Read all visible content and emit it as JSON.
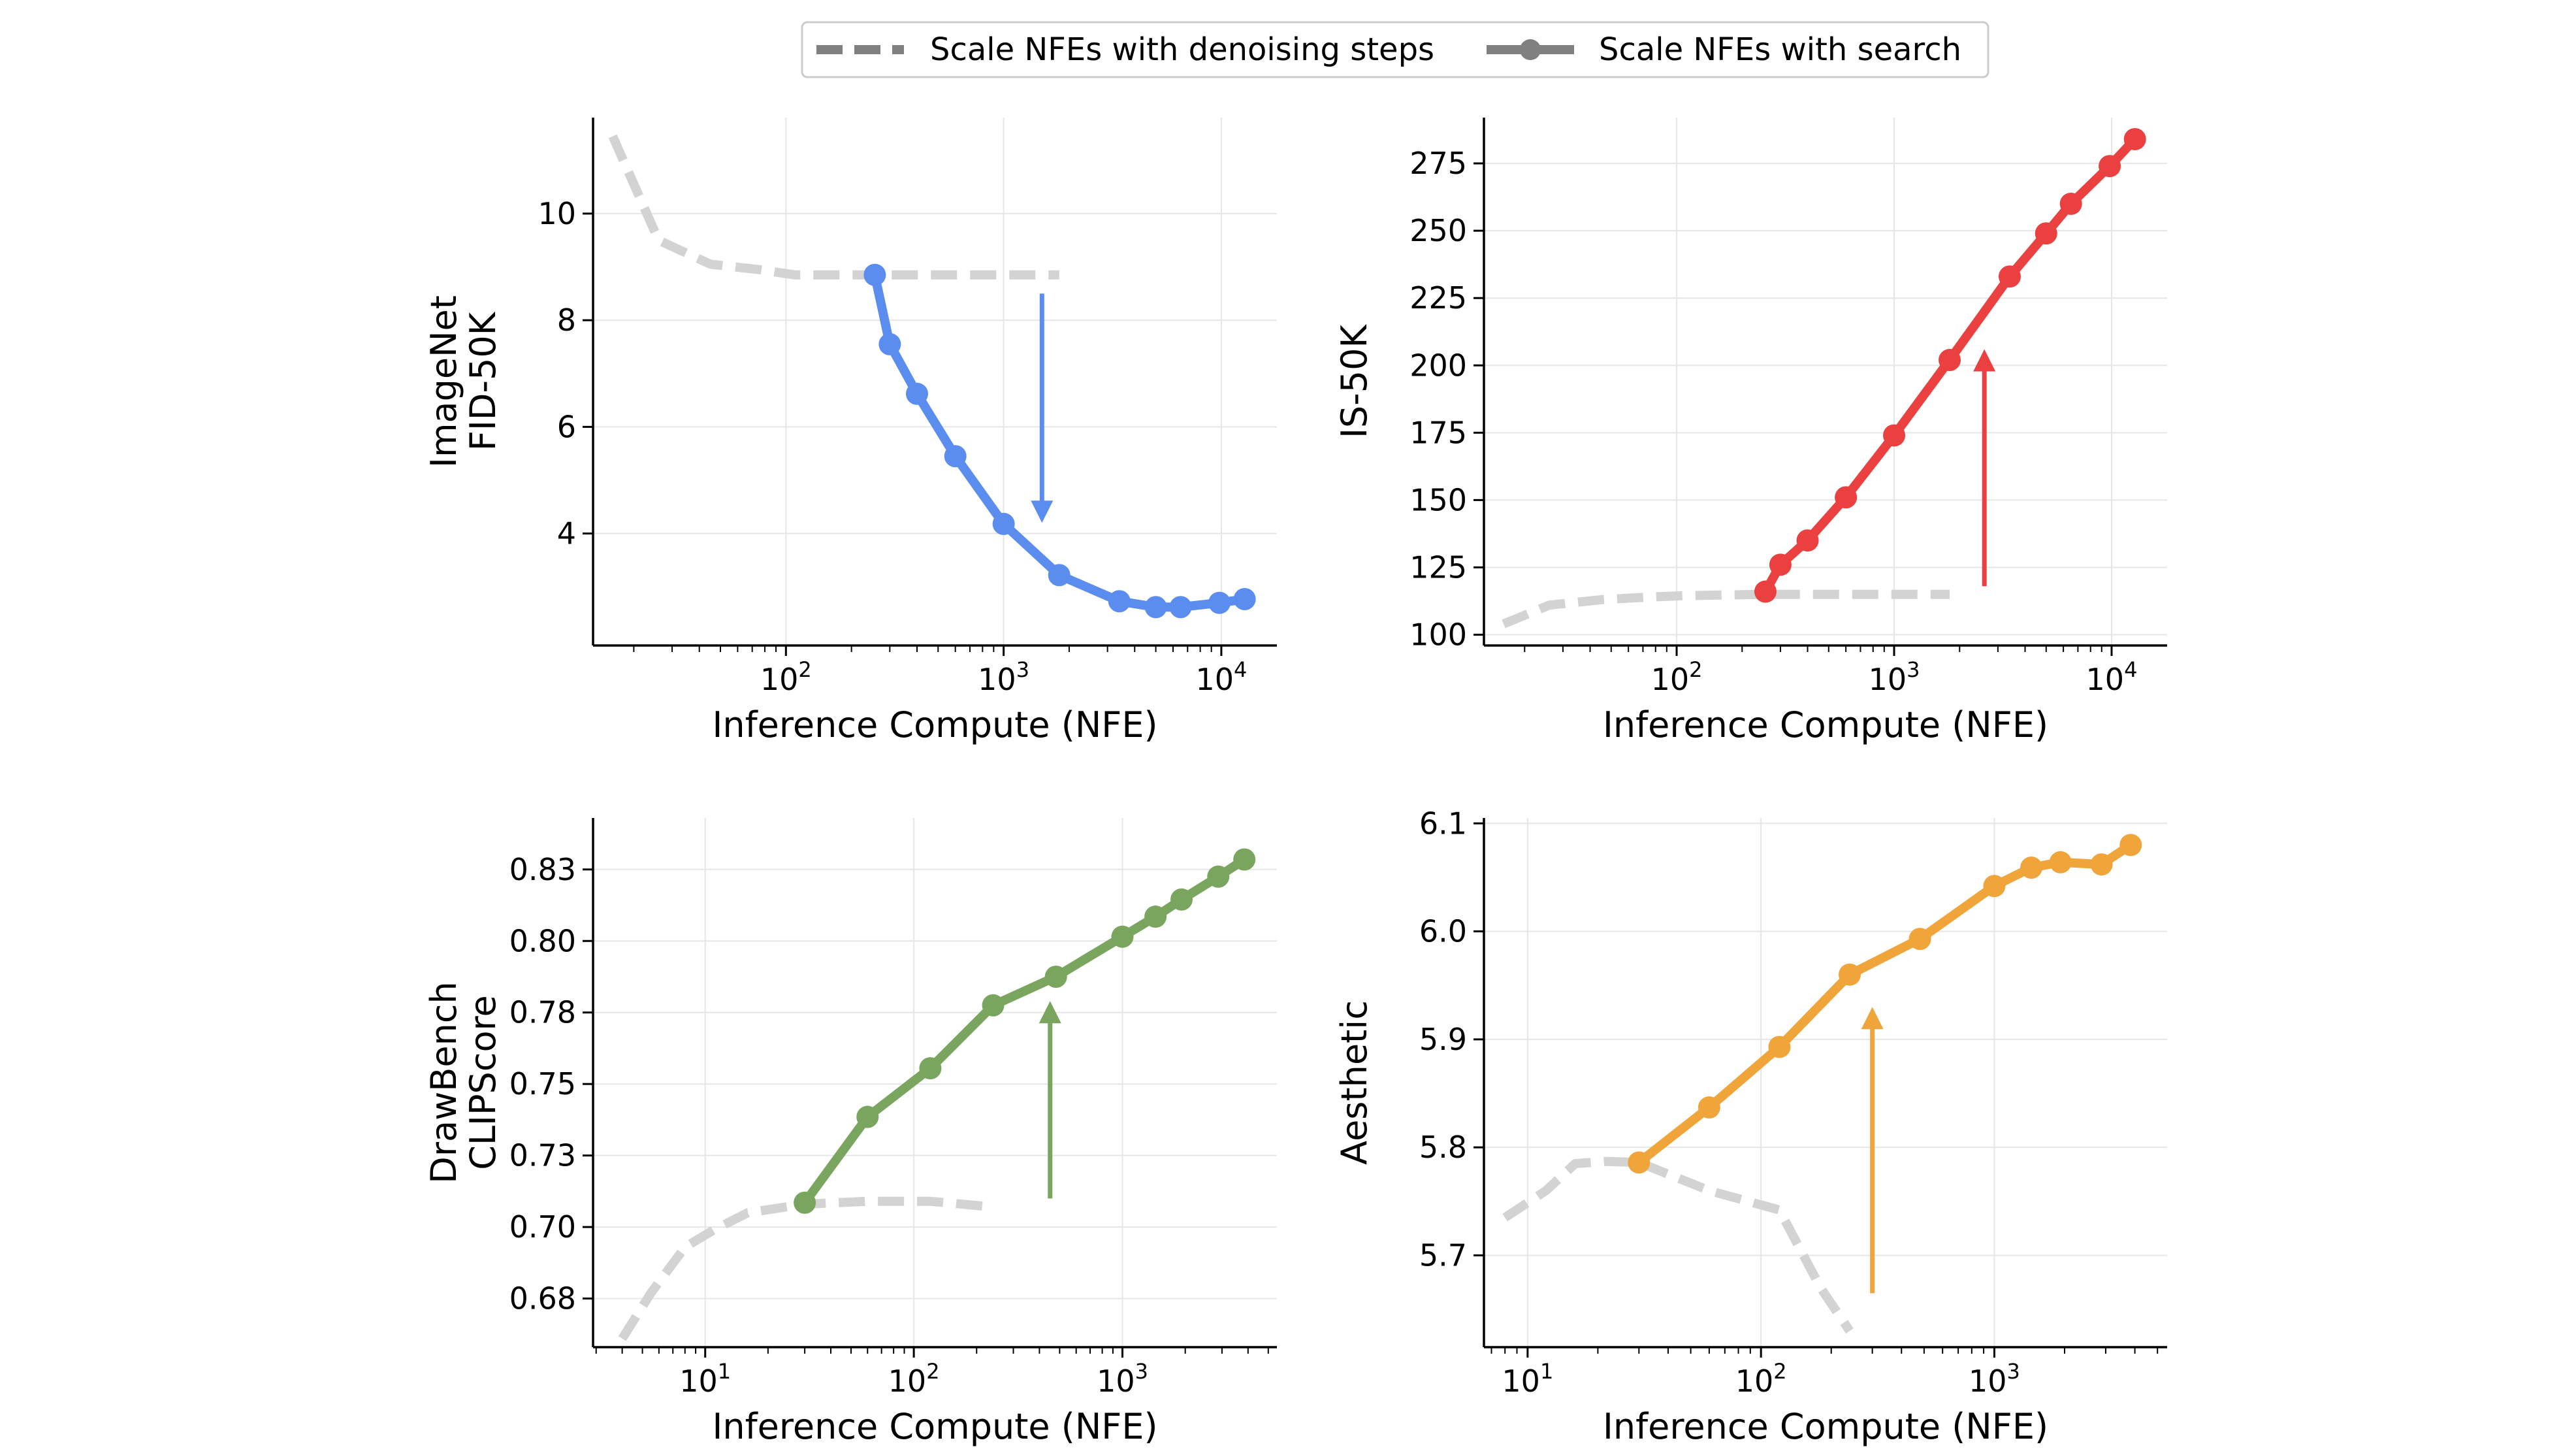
{
  "legend": {
    "placement": "top-center",
    "entries": [
      {
        "label": "Scale NFEs with denoising steps",
        "style": "dashed",
        "color": "#808080"
      },
      {
        "label": "Scale NFEs with search",
        "style": "solid-marker",
        "color": "#808080"
      }
    ]
  },
  "chart_data": [
    {
      "type": "line",
      "xlabel": "Inference Compute (NFE)",
      "ylabel": [
        "ImageNet",
        "FID-50K"
      ],
      "xscale": "log",
      "xlim": [
        13,
        18000
      ],
      "ylim": [
        1.9,
        11.8
      ],
      "grid": true,
      "xticks": [
        {
          "value": 100,
          "label": "10",
          "sup": "2"
        },
        {
          "value": 1000,
          "label": "10",
          "sup": "3"
        },
        {
          "value": 10000,
          "label": "10",
          "sup": "4"
        }
      ],
      "yticks": [
        {
          "value": 4,
          "label": "4"
        },
        {
          "value": 6,
          "label": "6"
        },
        {
          "value": 8,
          "label": "8"
        },
        {
          "value": 10,
          "label": "10"
        }
      ],
      "color": "#5b8def",
      "arrow": {
        "x": 1500,
        "from": 8.5,
        "to": 4.2,
        "direction": "down"
      },
      "series": [
        {
          "style": "dashed",
          "color": "#d3d3d3",
          "x": [
            16,
            26,
            45,
            75,
            110,
            250,
            500,
            1000,
            1800
          ],
          "y": [
            11.45,
            9.5,
            9.05,
            8.95,
            8.85,
            8.85,
            8.85,
            8.85,
            8.85
          ]
        },
        {
          "style": "solid-marker",
          "x": [
            256,
            300,
            400,
            600,
            1000,
            1800,
            3400,
            5000,
            6500,
            9800,
            12800
          ],
          "y": [
            8.85,
            7.55,
            6.62,
            5.45,
            4.18,
            3.22,
            2.73,
            2.62,
            2.62,
            2.7,
            2.77
          ]
        }
      ]
    },
    {
      "type": "line",
      "xlabel": "Inference Compute (NFE)",
      "ylabel": [
        "IS-50K"
      ],
      "xscale": "log",
      "xlim": [
        13,
        18000
      ],
      "ylim": [
        96,
        292
      ],
      "grid": true,
      "xticks": [
        {
          "value": 100,
          "label": "10",
          "sup": "2"
        },
        {
          "value": 1000,
          "label": "10",
          "sup": "3"
        },
        {
          "value": 10000,
          "label": "10",
          "sup": "4"
        }
      ],
      "yticks": [
        {
          "value": 100,
          "label": "100"
        },
        {
          "value": 125,
          "label": "125"
        },
        {
          "value": 150,
          "label": "150"
        },
        {
          "value": 175,
          "label": "175"
        },
        {
          "value": 200,
          "label": "200"
        },
        {
          "value": 225,
          "label": "225"
        },
        {
          "value": 250,
          "label": "250"
        },
        {
          "value": 275,
          "label": "275"
        }
      ],
      "color": "#ea4040",
      "arrow": {
        "x": 2600,
        "from": 118,
        "to": 206,
        "direction": "up"
      },
      "series": [
        {
          "style": "dashed",
          "color": "#d3d3d3",
          "x": [
            16,
            26,
            45,
            75,
            110,
            250,
            500,
            1000,
            1800
          ],
          "y": [
            104,
            111,
            113,
            114,
            114.5,
            115,
            115,
            115,
            115
          ]
        },
        {
          "style": "solid-marker",
          "x": [
            256,
            300,
            400,
            600,
            1000,
            1800,
            3400,
            5000,
            6500,
            9800,
            12800
          ],
          "y": [
            116,
            126,
            135,
            151,
            174,
            202,
            233,
            249,
            260,
            274,
            284
          ]
        }
      ]
    },
    {
      "type": "line",
      "xlabel": "Inference Compute (NFE)",
      "ylabel": [
        "DrawBench",
        "CLIPScore"
      ],
      "xscale": "log",
      "xlim": [
        2.9,
        5500
      ],
      "ylim": [
        0.658,
        0.843
      ],
      "grid": true,
      "xticks": [
        {
          "value": 10,
          "label": "10",
          "sup": "1"
        },
        {
          "value": 100,
          "label": "10",
          "sup": "2"
        },
        {
          "value": 1000,
          "label": "10",
          "sup": "3"
        }
      ],
      "yticks": [
        {
          "value": 0.675,
          "label": "0.68"
        },
        {
          "value": 0.7,
          "label": "0.70"
        },
        {
          "value": 0.725,
          "label": "0.73"
        },
        {
          "value": 0.75,
          "label": "0.75"
        },
        {
          "value": 0.775,
          "label": "0.78"
        },
        {
          "value": 0.8,
          "label": "0.80"
        },
        {
          "value": 0.825,
          "label": "0.83"
        }
      ],
      "color": "#7aa55e",
      "arrow": {
        "x": 450,
        "from": 0.71,
        "to": 0.779,
        "direction": "up"
      },
      "series": [
        {
          "style": "dashed",
          "color": "#d3d3d3",
          "x": [
            4,
            5.5,
            8,
            11,
            16,
            30,
            60,
            120,
            240
          ],
          "y": [
            0.661,
            0.677,
            0.693,
            0.699,
            0.705,
            0.708,
            0.709,
            0.709,
            0.707
          ]
        },
        {
          "style": "solid-marker",
          "x": [
            30,
            60,
            120,
            240,
            480,
            1000,
            1440,
            1920,
            2880,
            3840
          ],
          "y": [
            0.7085,
            0.7385,
            0.7555,
            0.7775,
            0.7875,
            0.8015,
            0.8085,
            0.8145,
            0.8225,
            0.8285
          ]
        }
      ]
    },
    {
      "type": "line",
      "xlabel": "Inference Compute (NFE)",
      "ylabel": [
        "Aesthetic"
      ],
      "xscale": "log",
      "xlim": [
        6.5,
        5500
      ],
      "ylim": [
        5.615,
        6.105
      ],
      "grid": true,
      "xticks": [
        {
          "value": 10,
          "label": "10",
          "sup": "1"
        },
        {
          "value": 100,
          "label": "10",
          "sup": "2"
        },
        {
          "value": 1000,
          "label": "10",
          "sup": "3"
        }
      ],
      "yticks": [
        {
          "value": 5.7,
          "label": "5.7"
        },
        {
          "value": 5.8,
          "label": "5.8"
        },
        {
          "value": 5.9,
          "label": "5.9"
        },
        {
          "value": 6.0,
          "label": "6.0"
        },
        {
          "value": 6.1,
          "label": "6.1"
        }
      ],
      "color": "#f0a53a",
      "arrow": {
        "x": 300,
        "from": 5.665,
        "to": 5.93,
        "direction": "up"
      },
      "series": [
        {
          "style": "dashed",
          "color": "#d3d3d3",
          "x": [
            8,
            12,
            16,
            22,
            30,
            60,
            120,
            180,
            240
          ],
          "y": [
            5.735,
            5.76,
            5.785,
            5.787,
            5.786,
            5.76,
            5.742,
            5.67,
            5.63
          ]
        },
        {
          "style": "solid-marker",
          "x": [
            30,
            60,
            120,
            240,
            480,
            1000,
            1440,
            1920,
            2880,
            3840
          ],
          "y": [
            5.786,
            5.837,
            5.893,
            5.96,
            5.993,
            6.042,
            6.059,
            6.064,
            6.062,
            6.08
          ]
        }
      ]
    }
  ]
}
